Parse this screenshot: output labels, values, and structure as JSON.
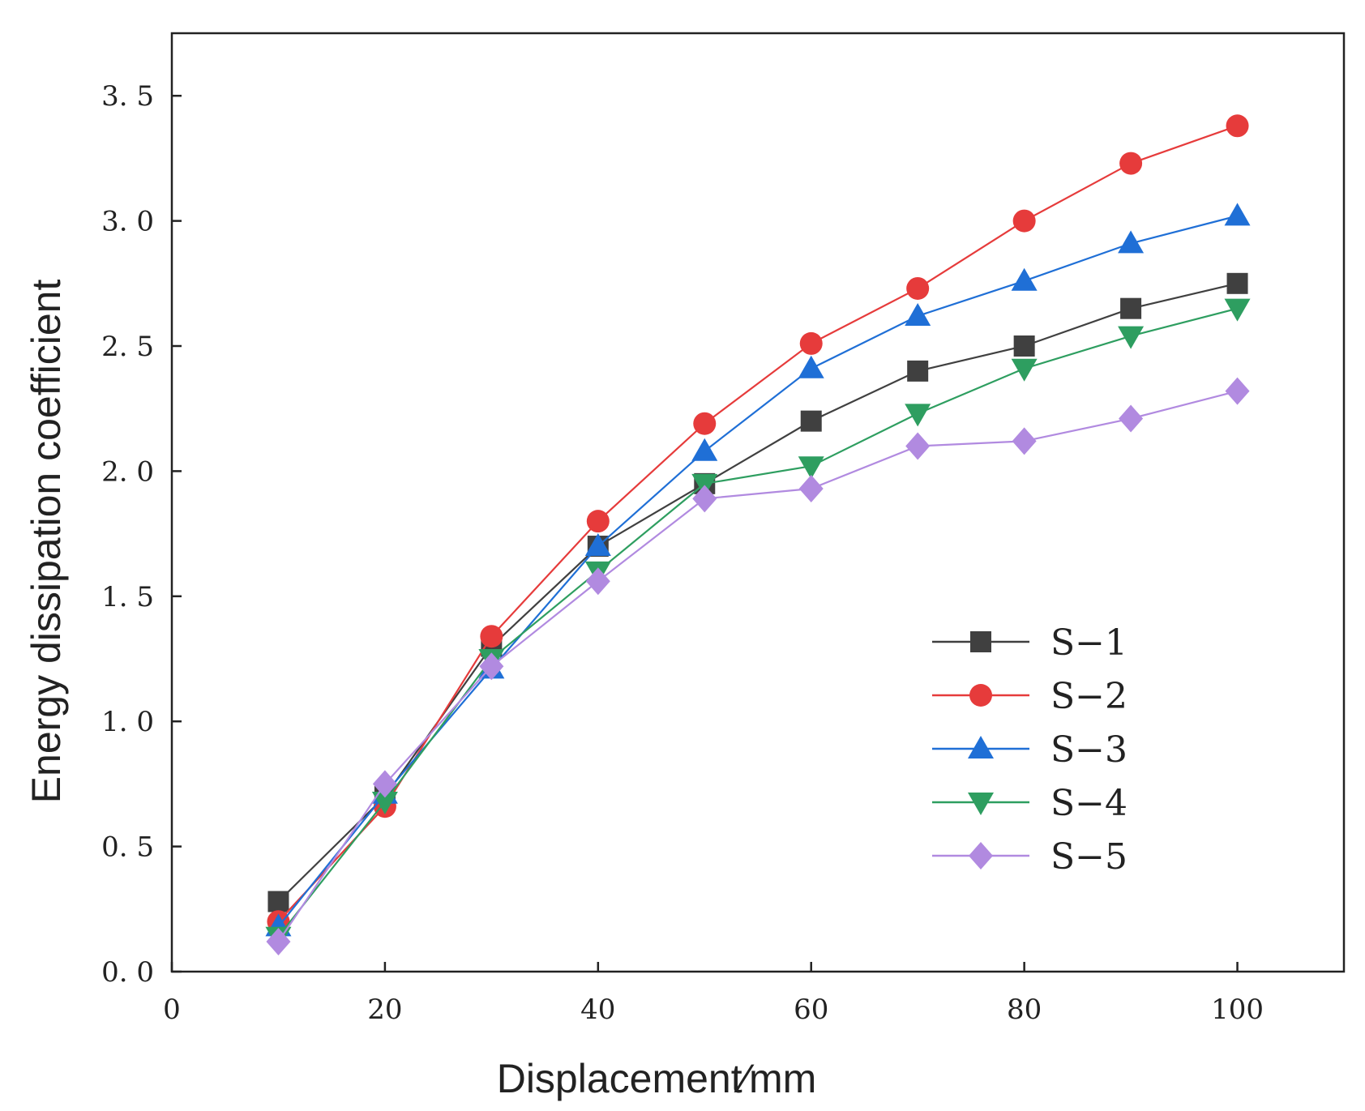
{
  "chart_data": {
    "type": "line",
    "title": "",
    "xlabel": "Displacement∕mm",
    "ylabel": "Energy dissipation coefficient",
    "x": [
      10,
      20,
      30,
      40,
      50,
      60,
      70,
      80,
      90,
      100
    ],
    "xlim": [
      0,
      110
    ],
    "ylim": [
      0,
      3.75
    ],
    "x_ticks": [
      "0",
      "20",
      "40",
      "60",
      "80",
      "100"
    ],
    "y_ticks": [
      "0. 0",
      "0. 5",
      "1. 0",
      "1. 5",
      "2. 0",
      "2. 5",
      "3. 0",
      "3. 5"
    ],
    "legend_position": "bottom-right",
    "series": [
      {
        "name": "S−1",
        "color": "#404040",
        "marker": "square",
        "values": [
          0.28,
          0.7,
          1.3,
          1.7,
          1.95,
          2.2,
          2.4,
          2.5,
          2.65,
          2.75
        ]
      },
      {
        "name": "S−2",
        "color": "#e63b3b",
        "marker": "circle",
        "values": [
          0.2,
          0.66,
          1.34,
          1.8,
          2.19,
          2.51,
          2.73,
          3.0,
          3.23,
          3.38
        ]
      },
      {
        "name": "S−3",
        "color": "#1f6fd6",
        "marker": "triangle-up",
        "values": [
          0.18,
          0.71,
          1.21,
          1.7,
          2.08,
          2.41,
          2.62,
          2.76,
          2.91,
          3.02
        ]
      },
      {
        "name": "S−4",
        "color": "#2e9e60",
        "marker": "triangle-down",
        "values": [
          0.14,
          0.68,
          1.25,
          1.6,
          1.95,
          2.02,
          2.23,
          2.41,
          2.54,
          2.65
        ]
      },
      {
        "name": "S−5",
        "color": "#b18ae0",
        "marker": "diamond",
        "values": [
          0.12,
          0.75,
          1.22,
          1.56,
          1.89,
          1.93,
          2.1,
          2.12,
          2.21,
          2.32
        ]
      }
    ]
  }
}
